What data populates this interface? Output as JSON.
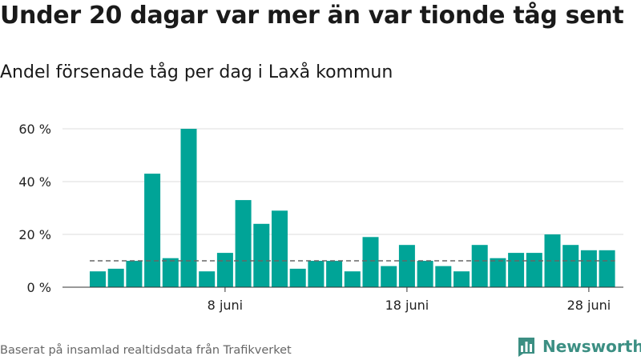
{
  "header": {
    "title": "Under 20 dagar var mer än var tionde tåg sent",
    "subtitle": "Andel försenade tåg per dag i Laxå kommun"
  },
  "footer": {
    "source": "Baserat på insamlad realtidsdata från Trafikverket",
    "brand": "Newsworthy"
  },
  "colors": {
    "bar": "#00a497",
    "grid": "#dddddd",
    "reference_line": "#666666",
    "brand": "#3c8f83"
  },
  "icons": {
    "brand_logo": "bar-chart-logo-icon"
  },
  "chart_data": {
    "type": "bar",
    "x": [
      "1 juni",
      "2 juni",
      "3 juni",
      "4 juni",
      "5 juni",
      "6 juni",
      "7 juni",
      "8 juni",
      "9 juni",
      "10 juni",
      "11 juni",
      "12 juni",
      "13 juni",
      "14 juni",
      "15 juni",
      "16 juni",
      "17 juni",
      "18 juni",
      "19 juni",
      "20 juni",
      "21 juni",
      "22 juni",
      "23 juni",
      "24 juni",
      "25 juni",
      "26 juni",
      "27 juni",
      "28 juni",
      "29 juni"
    ],
    "values": [
      6,
      7,
      10,
      43,
      11,
      60,
      6,
      13,
      33,
      24,
      29,
      7,
      10,
      10,
      6,
      19,
      8,
      16,
      10,
      8,
      6,
      16,
      11,
      13,
      13,
      20,
      16,
      14,
      14
    ],
    "reference_line": 10,
    "ylim": [
      0,
      60
    ],
    "yticks": [
      0,
      20,
      40,
      60
    ],
    "ytick_labels": [
      "0 %",
      "20 %",
      "40 %",
      "60 %"
    ],
    "xticks": [
      "8 juni",
      "18 juni",
      "28 juni"
    ],
    "grid": true,
    "xlabel": "",
    "ylabel": ""
  }
}
